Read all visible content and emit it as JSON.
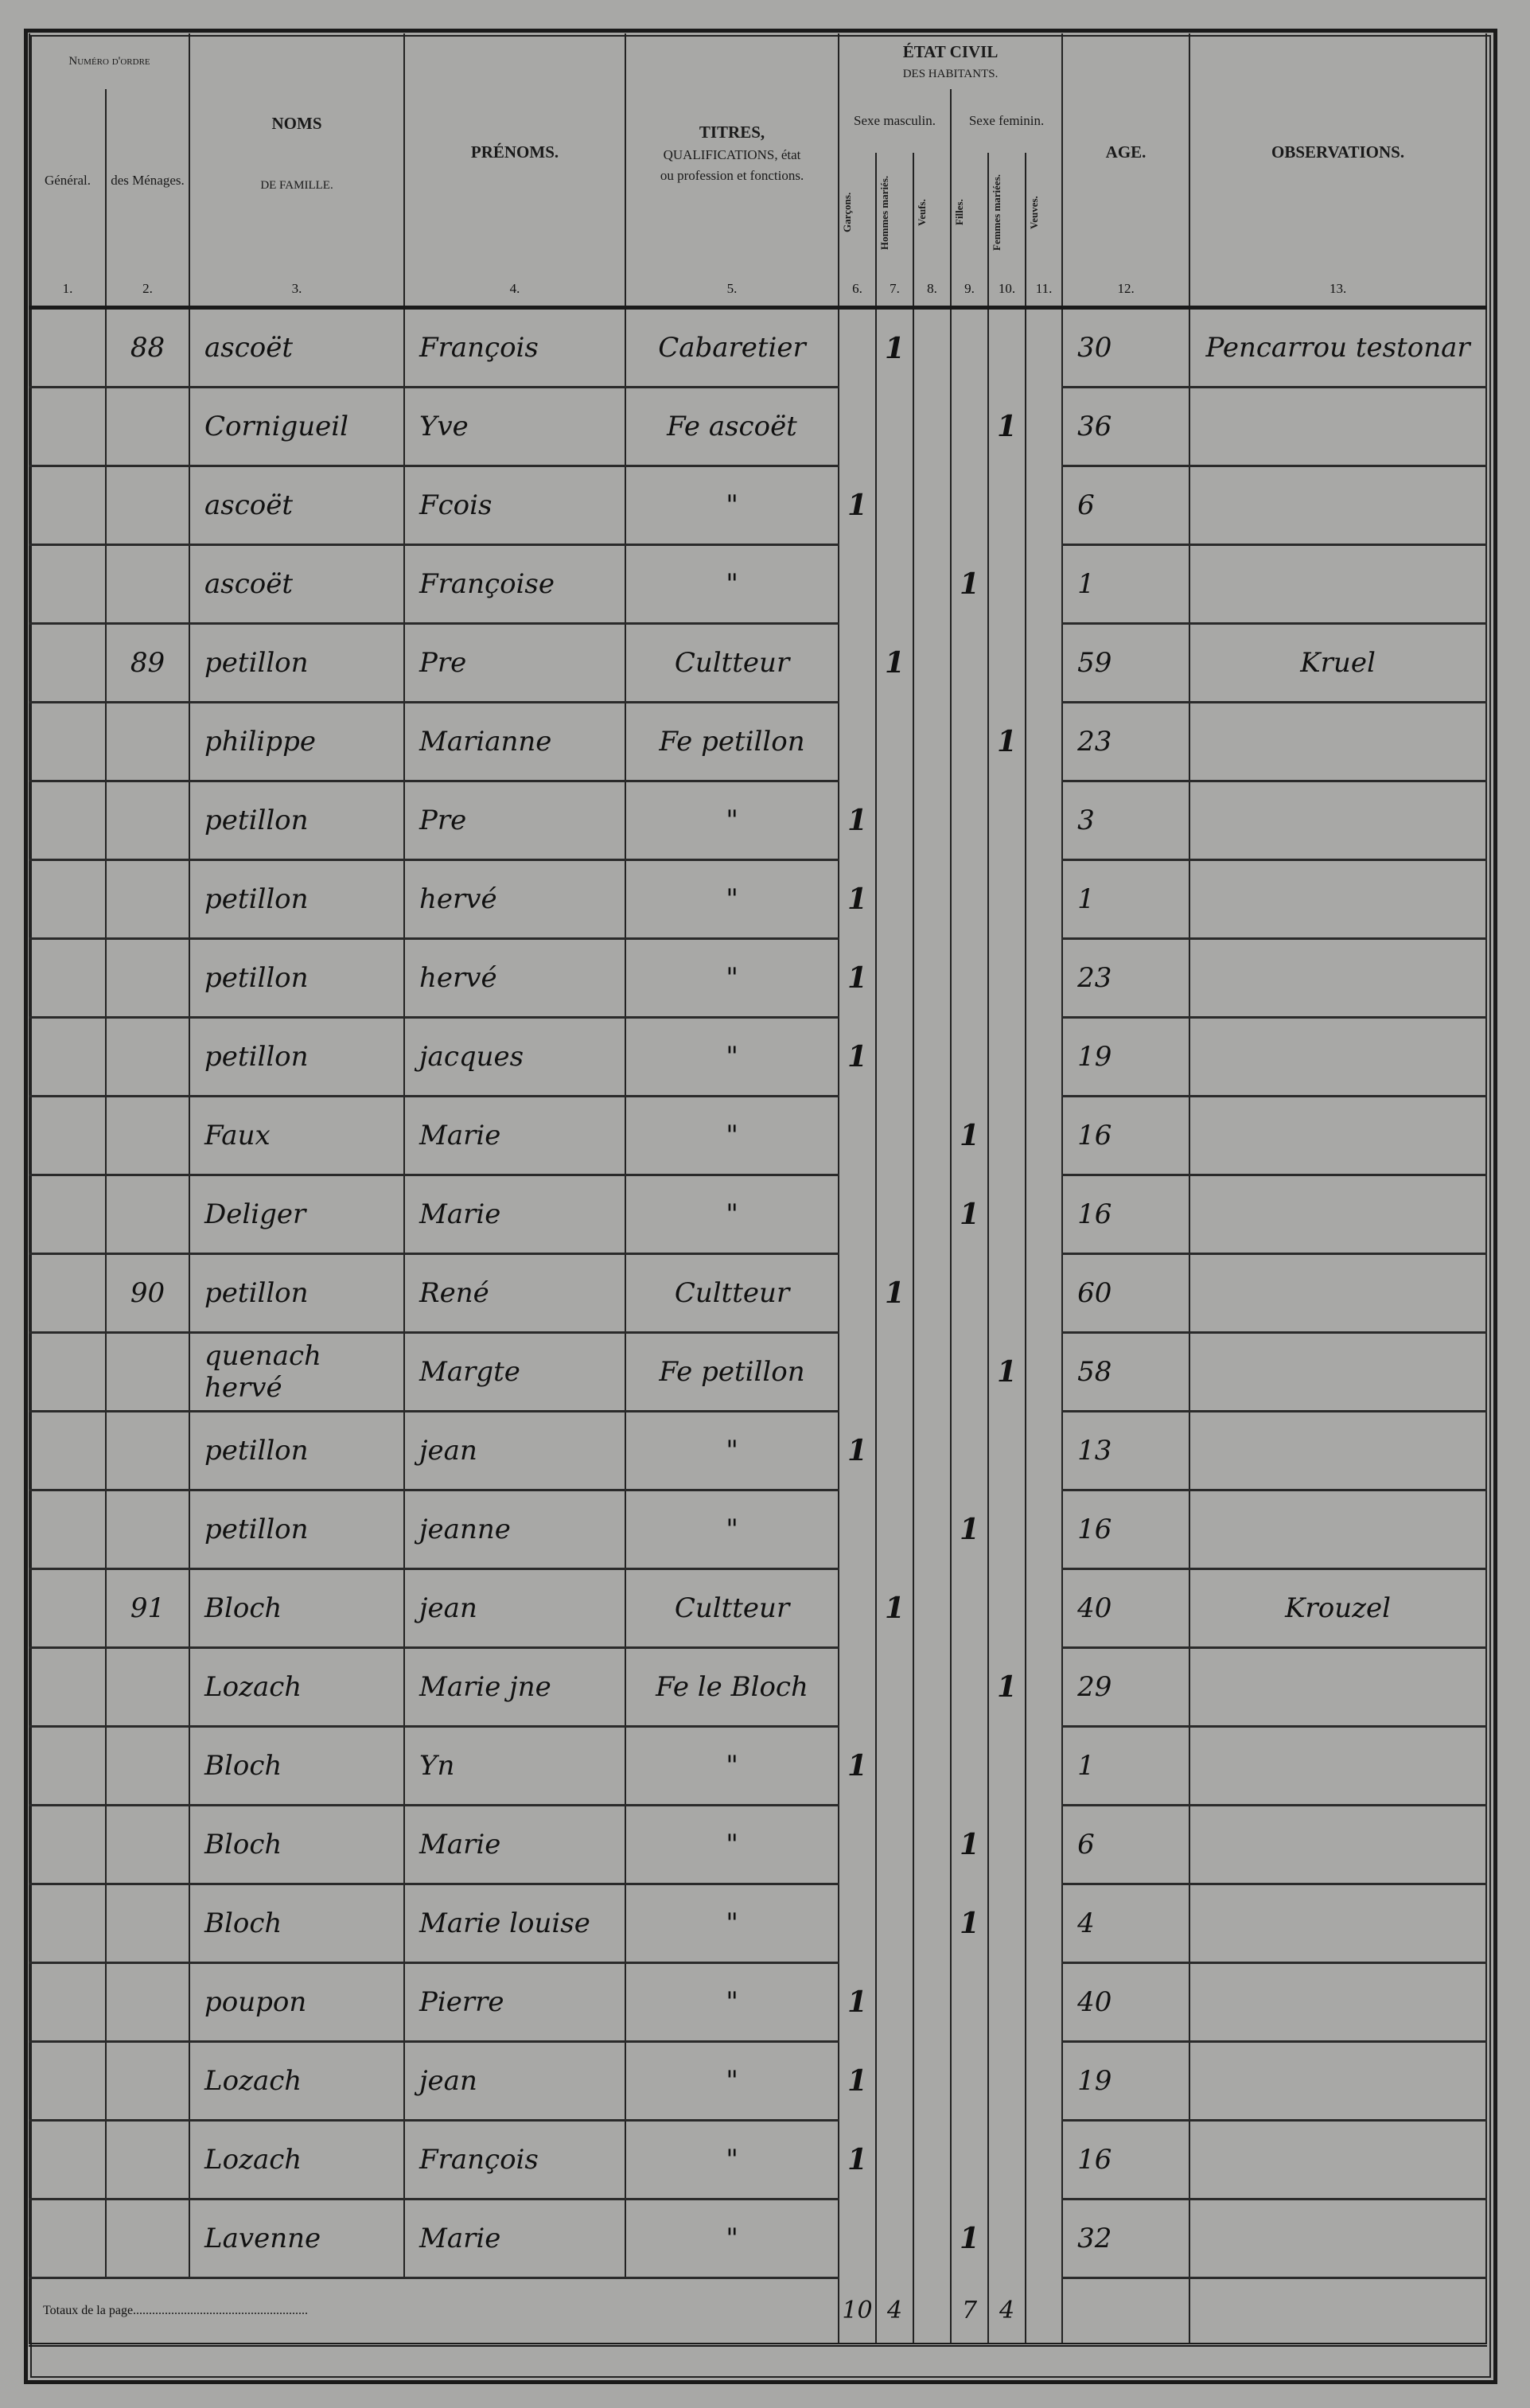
{
  "header": {
    "numero_ordre": "Numéro d'ordre",
    "general": "Général.",
    "menages": "des Ménages.",
    "noms": "NOMS",
    "noms_sub": "DE FAMILLE.",
    "prenoms": "PRÉNOMS.",
    "titres": "TITRES,",
    "titres_sub": "QUALIFICATIONS, état ou profession et fonctions.",
    "etat_civil": "ÉTAT CIVIL",
    "etat_civil_sub": "DES HABITANTS.",
    "sexe_masculin": "Sexe masculin.",
    "sexe_feminin": "Sexe feminin.",
    "sub_cols": [
      "Garçons.",
      "Hommes mariés.",
      "Veufs.",
      "Filles.",
      "Femmes mariées.",
      "Veuves."
    ],
    "age": "AGE.",
    "observations": "OBSERVATIONS.",
    "col_numbers": [
      "1.",
      "2.",
      "3.",
      "4.",
      "5.",
      "6.",
      "7.",
      "8.",
      "9.",
      "10.",
      "11.",
      "12.",
      "13."
    ]
  },
  "rows": [
    {
      "menage": "88",
      "nom": "ascoët",
      "prenom": "François",
      "titre": "Cabaretier",
      "marks": [
        "",
        "1",
        "",
        "",
        "",
        ""
      ],
      "age": "30",
      "obs": "Pencarrou testonar"
    },
    {
      "menage": "",
      "nom": "Cornigueil",
      "prenom": "Yve",
      "titre": "Fe ascoët",
      "marks": [
        "",
        "",
        "",
        "",
        "1",
        ""
      ],
      "age": "36",
      "obs": ""
    },
    {
      "menage": "",
      "nom": "ascoët",
      "prenom": "Fcois",
      "titre": "\"",
      "marks": [
        "1",
        "",
        "",
        "",
        "",
        ""
      ],
      "age": "6",
      "obs": ""
    },
    {
      "menage": "",
      "nom": "ascoët",
      "prenom": "Françoise",
      "titre": "\"",
      "marks": [
        "",
        "",
        "",
        "1",
        "",
        ""
      ],
      "age": "1",
      "obs": ""
    },
    {
      "menage": "89",
      "nom": "petillon",
      "prenom": "Pre",
      "titre": "Cultteur",
      "marks": [
        "",
        "1",
        "",
        "",
        "",
        ""
      ],
      "age": "59",
      "obs": "Kruel"
    },
    {
      "menage": "",
      "nom": "philippe",
      "prenom": "Marianne",
      "titre": "Fe petillon",
      "marks": [
        "",
        "",
        "",
        "",
        "1",
        ""
      ],
      "age": "23",
      "obs": ""
    },
    {
      "menage": "",
      "nom": "petillon",
      "prenom": "Pre",
      "titre": "\"",
      "marks": [
        "1",
        "",
        "",
        "",
        "",
        ""
      ],
      "age": "3",
      "obs": ""
    },
    {
      "menage": "",
      "nom": "petillon",
      "prenom": "hervé",
      "titre": "\"",
      "marks": [
        "1",
        "",
        "",
        "",
        "",
        ""
      ],
      "age": "1",
      "obs": ""
    },
    {
      "menage": "",
      "nom": "petillon",
      "prenom": "hervé",
      "titre": "\"",
      "marks": [
        "1",
        "",
        "",
        "",
        "",
        ""
      ],
      "age": "23",
      "obs": ""
    },
    {
      "menage": "",
      "nom": "petillon",
      "prenom": "jacques",
      "titre": "\"",
      "marks": [
        "1",
        "",
        "",
        "",
        "",
        ""
      ],
      "age": "19",
      "obs": ""
    },
    {
      "menage": "",
      "nom": "Faux",
      "prenom": "Marie",
      "titre": "\"",
      "marks": [
        "",
        "",
        "",
        "1",
        "",
        ""
      ],
      "age": "16",
      "obs": ""
    },
    {
      "menage": "",
      "nom": "Deliger",
      "prenom": "Marie",
      "titre": "\"",
      "marks": [
        "",
        "",
        "",
        "1",
        "",
        ""
      ],
      "age": "16",
      "obs": ""
    },
    {
      "menage": "90",
      "nom": "petillon",
      "prenom": "René",
      "titre": "Cultteur",
      "marks": [
        "",
        "1",
        "",
        "",
        "",
        ""
      ],
      "age": "60",
      "obs": ""
    },
    {
      "menage": "",
      "nom": "quenach hervé",
      "prenom": "Margte",
      "titre": "Fe petillon",
      "marks": [
        "",
        "",
        "",
        "",
        "1",
        ""
      ],
      "age": "58",
      "obs": ""
    },
    {
      "menage": "",
      "nom": "petillon",
      "prenom": "jean",
      "titre": "\"",
      "marks": [
        "1",
        "",
        "",
        "",
        "",
        ""
      ],
      "age": "13",
      "obs": ""
    },
    {
      "menage": "",
      "nom": "petillon",
      "prenom": "jeanne",
      "titre": "\"",
      "marks": [
        "",
        "",
        "",
        "1",
        "",
        ""
      ],
      "age": "16",
      "obs": ""
    },
    {
      "menage": "91",
      "nom": "Bloch",
      "prenom": "jean",
      "titre": "Cultteur",
      "marks": [
        "",
        "1",
        "",
        "",
        "",
        ""
      ],
      "age": "40",
      "obs": "Krouzel"
    },
    {
      "menage": "",
      "nom": "Lozach",
      "prenom": "Marie jne",
      "titre": "Fe le Bloch",
      "marks": [
        "",
        "",
        "",
        "",
        "1",
        ""
      ],
      "age": "29",
      "obs": ""
    },
    {
      "menage": "",
      "nom": "Bloch",
      "prenom": "Yn",
      "titre": "\"",
      "marks": [
        "1",
        "",
        "",
        "",
        "",
        ""
      ],
      "age": "1",
      "obs": ""
    },
    {
      "menage": "",
      "nom": "Bloch",
      "prenom": "Marie",
      "titre": "\"",
      "marks": [
        "",
        "",
        "",
        "1",
        "",
        ""
      ],
      "age": "6",
      "obs": ""
    },
    {
      "menage": "",
      "nom": "Bloch",
      "prenom": "Marie louise",
      "titre": "\"",
      "marks": [
        "",
        "",
        "",
        "1",
        "",
        ""
      ],
      "age": "4",
      "obs": ""
    },
    {
      "menage": "",
      "nom": "poupon",
      "prenom": "Pierre",
      "titre": "\"",
      "marks": [
        "1",
        "",
        "",
        "",
        "",
        ""
      ],
      "age": "40",
      "obs": ""
    },
    {
      "menage": "",
      "nom": "Lozach",
      "prenom": "jean",
      "titre": "\"",
      "marks": [
        "1",
        "",
        "",
        "",
        "",
        ""
      ],
      "age": "19",
      "obs": ""
    },
    {
      "menage": "",
      "nom": "Lozach",
      "prenom": "François",
      "titre": "\"",
      "marks": [
        "1",
        "",
        "",
        "",
        "",
        ""
      ],
      "age": "16",
      "obs": ""
    },
    {
      "menage": "",
      "nom": "Lavenne",
      "prenom": "Marie",
      "titre": "\"",
      "marks": [
        "",
        "",
        "",
        "1",
        "",
        ""
      ],
      "age": "32",
      "obs": ""
    }
  ],
  "totals": {
    "label": "Totaux de la page.......................................................",
    "values": [
      "10",
      "4",
      "",
      "7",
      "4",
      ""
    ]
  }
}
